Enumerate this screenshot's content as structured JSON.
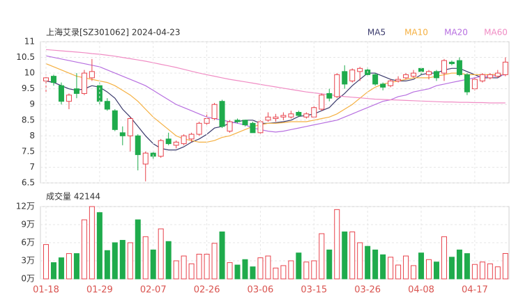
{
  "chart_data": [
    {
      "type": "candlestick",
      "title": "上海艾录[SZ301062] 2024-04-23",
      "open": [
        9.75,
        9.9,
        9.6,
        9.1,
        9.5,
        9.35,
        9.85,
        9.6,
        9.1,
        8.8,
        8.1,
        8.0,
        8.0,
        7.1,
        7.45,
        7.35,
        7.9,
        7.7,
        7.75,
        7.9,
        8.05,
        8.4,
        8.55,
        9.1,
        8.15,
        8.5,
        8.5,
        8.4,
        8.1,
        8.5,
        8.55,
        8.6,
        8.6,
        8.75,
        8.6,
        8.6,
        8.85,
        9.35,
        9.25,
        10.05,
        9.75,
        10.05,
        10.1,
        9.95,
        9.65,
        9.6,
        9.75,
        9.85,
        9.9,
        10.15,
        9.95,
        10.05,
        10.0,
        10.35,
        10.4,
        9.95,
        9.5,
        9.75,
        9.85,
        9.9,
        9.95
      ],
      "high": [
        9.95,
        9.95,
        9.7,
        9.35,
        10.0,
        10.1,
        10.45,
        9.7,
        9.2,
        8.85,
        8.3,
        8.6,
        8.05,
        7.5,
        7.5,
        7.9,
        8.1,
        7.85,
        8.05,
        8.1,
        8.45,
        8.75,
        9.05,
        9.15,
        8.5,
        8.55,
        8.5,
        8.45,
        8.5,
        8.75,
        8.7,
        8.75,
        8.8,
        8.8,
        8.75,
        8.95,
        9.35,
        9.5,
        10.0,
        10.25,
        10.15,
        10.2,
        10.2,
        10.0,
        9.7,
        9.8,
        9.9,
        10.0,
        10.1,
        10.2,
        10.1,
        10.1,
        10.45,
        10.4,
        10.5,
        10.0,
        9.85,
        10.0,
        10.0,
        10.1,
        10.5
      ],
      "low": [
        9.35,
        9.6,
        9.0,
        8.85,
        9.2,
        9.3,
        9.75,
        9.0,
        8.8,
        8.15,
        7.7,
        7.5,
        6.9,
        6.55,
        7.25,
        7.3,
        7.7,
        7.6,
        7.7,
        7.8,
        8.0,
        8.35,
        8.5,
        8.25,
        8.1,
        8.4,
        8.3,
        8.1,
        8.05,
        8.45,
        8.45,
        8.5,
        8.55,
        8.6,
        8.55,
        8.55,
        8.8,
        9.1,
        9.2,
        9.5,
        9.7,
        9.75,
        9.9,
        9.6,
        9.45,
        9.55,
        9.7,
        9.8,
        9.85,
        9.95,
        9.8,
        9.75,
        9.75,
        10.25,
        9.9,
        9.3,
        9.45,
        9.7,
        9.8,
        9.85,
        9.9
      ],
      "close": [
        9.85,
        9.7,
        9.1,
        9.3,
        9.35,
        10.0,
        10.05,
        9.1,
        8.85,
        8.2,
        8.0,
        8.55,
        7.4,
        7.45,
        7.35,
        7.85,
        7.75,
        7.8,
        8.0,
        8.05,
        8.4,
        8.55,
        9.0,
        8.3,
        8.45,
        8.45,
        8.35,
        8.1,
        8.45,
        8.6,
        8.6,
        8.65,
        8.7,
        8.65,
        8.7,
        8.9,
        9.3,
        9.2,
        9.95,
        9.65,
        10.1,
        10.15,
        9.95,
        9.65,
        9.55,
        9.75,
        9.8,
        9.95,
        10.0,
        10.05,
        10.05,
        9.85,
        10.4,
        10.3,
        9.95,
        9.4,
        9.8,
        9.95,
        9.95,
        10.0,
        10.35
      ],
      "series": [
        {
          "name": "MA5",
          "color": "#3b3b6d",
          "values": [
            9.75,
            9.7,
            9.6,
            9.5,
            9.45,
            9.5,
            9.6,
            9.55,
            9.4,
            9.2,
            8.85,
            8.6,
            8.3,
            8.0,
            7.75,
            7.6,
            7.55,
            7.55,
            7.65,
            7.8,
            7.9,
            8.05,
            8.25,
            8.3,
            8.4,
            8.45,
            8.5,
            8.5,
            8.4,
            8.4,
            8.42,
            8.45,
            8.5,
            8.62,
            8.65,
            8.7,
            8.8,
            8.9,
            9.15,
            9.35,
            9.6,
            9.8,
            10.0,
            10.0,
            9.9,
            9.8,
            9.75,
            9.75,
            9.8,
            9.95,
            10.0,
            10.0,
            10.1,
            10.15,
            10.15,
            10.05,
            9.95,
            9.85,
            9.85,
            9.85,
            10.0
          ]
        },
        {
          "name": "MA10",
          "color": "#f5b041",
          "values": [
            10.3,
            10.2,
            10.1,
            10.0,
            9.9,
            9.85,
            9.8,
            9.75,
            9.7,
            9.6,
            9.45,
            9.3,
            9.1,
            8.85,
            8.6,
            8.4,
            8.2,
            8.0,
            7.9,
            7.85,
            7.8,
            7.8,
            7.85,
            7.95,
            8.0,
            8.1,
            8.2,
            8.3,
            8.35,
            8.4,
            8.4,
            8.42,
            8.45,
            8.45,
            8.45,
            8.5,
            8.55,
            8.6,
            8.7,
            8.85,
            9.0,
            9.2,
            9.4,
            9.55,
            9.65,
            9.7,
            9.75,
            9.8,
            9.85,
            9.85,
            9.85,
            9.9,
            9.95,
            10.0,
            10.0,
            9.95,
            9.95,
            9.95,
            9.95,
            9.95,
            9.95
          ]
        },
        {
          "name": "MA20",
          "color": "#b76fe0",
          "values": [
            10.55,
            10.5,
            10.45,
            10.4,
            10.35,
            10.3,
            10.25,
            10.2,
            10.1,
            10.0,
            9.9,
            9.8,
            9.7,
            9.6,
            9.45,
            9.3,
            9.15,
            9.0,
            8.9,
            8.8,
            8.7,
            8.6,
            8.55,
            8.5,
            8.45,
            8.4,
            8.35,
            8.25,
            8.2,
            8.15,
            8.12,
            8.15,
            8.2,
            8.25,
            8.3,
            8.35,
            8.4,
            8.45,
            8.5,
            8.6,
            8.7,
            8.8,
            8.9,
            9.0,
            9.1,
            9.15,
            9.25,
            9.3,
            9.4,
            9.45,
            9.5,
            9.6,
            9.65,
            9.7,
            9.75,
            9.8,
            9.85,
            9.9,
            9.9,
            9.92,
            9.95
          ]
        },
        {
          "name": "MA60",
          "color": "#f08cc4",
          "values": [
            10.75,
            10.73,
            10.71,
            10.69,
            10.67,
            10.65,
            10.62,
            10.6,
            10.57,
            10.54,
            10.5,
            10.46,
            10.42,
            10.38,
            10.33,
            10.28,
            10.23,
            10.18,
            10.12,
            10.06,
            10.0,
            9.95,
            9.9,
            9.85,
            9.8,
            9.76,
            9.72,
            9.68,
            9.64,
            9.6,
            9.56,
            9.52,
            9.48,
            9.44,
            9.4,
            9.37,
            9.34,
            9.31,
            9.28,
            9.25,
            9.23,
            9.21,
            9.19,
            9.17,
            9.16,
            9.15,
            9.14,
            9.13,
            9.12,
            9.11,
            9.1,
            9.09,
            9.08,
            9.08,
            9.07,
            9.07,
            9.06,
            9.06,
            9.05,
            9.05,
            9.05
          ]
        }
      ],
      "up_color": "#e8424b",
      "down_color": "#1fab4c",
      "ylim": [
        6.5,
        11
      ],
      "yticks": [
        11,
        10.5,
        10,
        9.5,
        9,
        8.5,
        8,
        7.5,
        7,
        6.5
      ],
      "grid": true
    },
    {
      "type": "bar",
      "title": "成交量 42144",
      "categories": [
        "01-18",
        null,
        null,
        null,
        null,
        null,
        null,
        "01-29",
        null,
        null,
        null,
        null,
        null,
        null,
        "02-07",
        null,
        null,
        null,
        null,
        null,
        null,
        "02-26",
        null,
        null,
        null,
        null,
        null,
        null,
        "03-06",
        null,
        null,
        null,
        null,
        null,
        null,
        "03-15",
        null,
        null,
        null,
        null,
        null,
        null,
        "03-26",
        null,
        null,
        null,
        null,
        null,
        null,
        "04-08",
        null,
        null,
        null,
        null,
        null,
        null,
        "04-17",
        null,
        null,
        null,
        null
      ],
      "values": [
        5.7,
        2.7,
        3.5,
        4.2,
        4.2,
        9.8,
        12,
        11,
        4.7,
        6,
        6.4,
        6,
        9.8,
        7,
        4.8,
        8.3,
        6.2,
        3,
        3.8,
        2.5,
        4.1,
        4.1,
        5.9,
        7.8,
        2.7,
        2.3,
        3.2,
        2.0,
        3.5,
        3.8,
        1.8,
        2.2,
        3.0,
        4.3,
        2.8,
        3.0,
        7.5,
        4.8,
        11.5,
        7.8,
        7.8,
        6.0,
        5.4,
        4.8,
        4.0,
        3.6,
        2.3,
        3.8,
        2.2,
        4.3,
        3.2,
        2.8,
        7.0,
        3.6,
        4.8,
        4.2,
        2.4,
        2.8,
        2.5,
        2.0,
        4.2144
      ],
      "ylim": [
        0,
        12
      ],
      "yticks": [
        {
          "value": 12,
          "label": "12万"
        },
        {
          "value": 9,
          "label": "9万"
        },
        {
          "value": 6,
          "label": "6万"
        },
        {
          "value": 3,
          "label": "3万"
        },
        {
          "value": 0,
          "label": "0万"
        }
      ],
      "grid": true
    }
  ]
}
